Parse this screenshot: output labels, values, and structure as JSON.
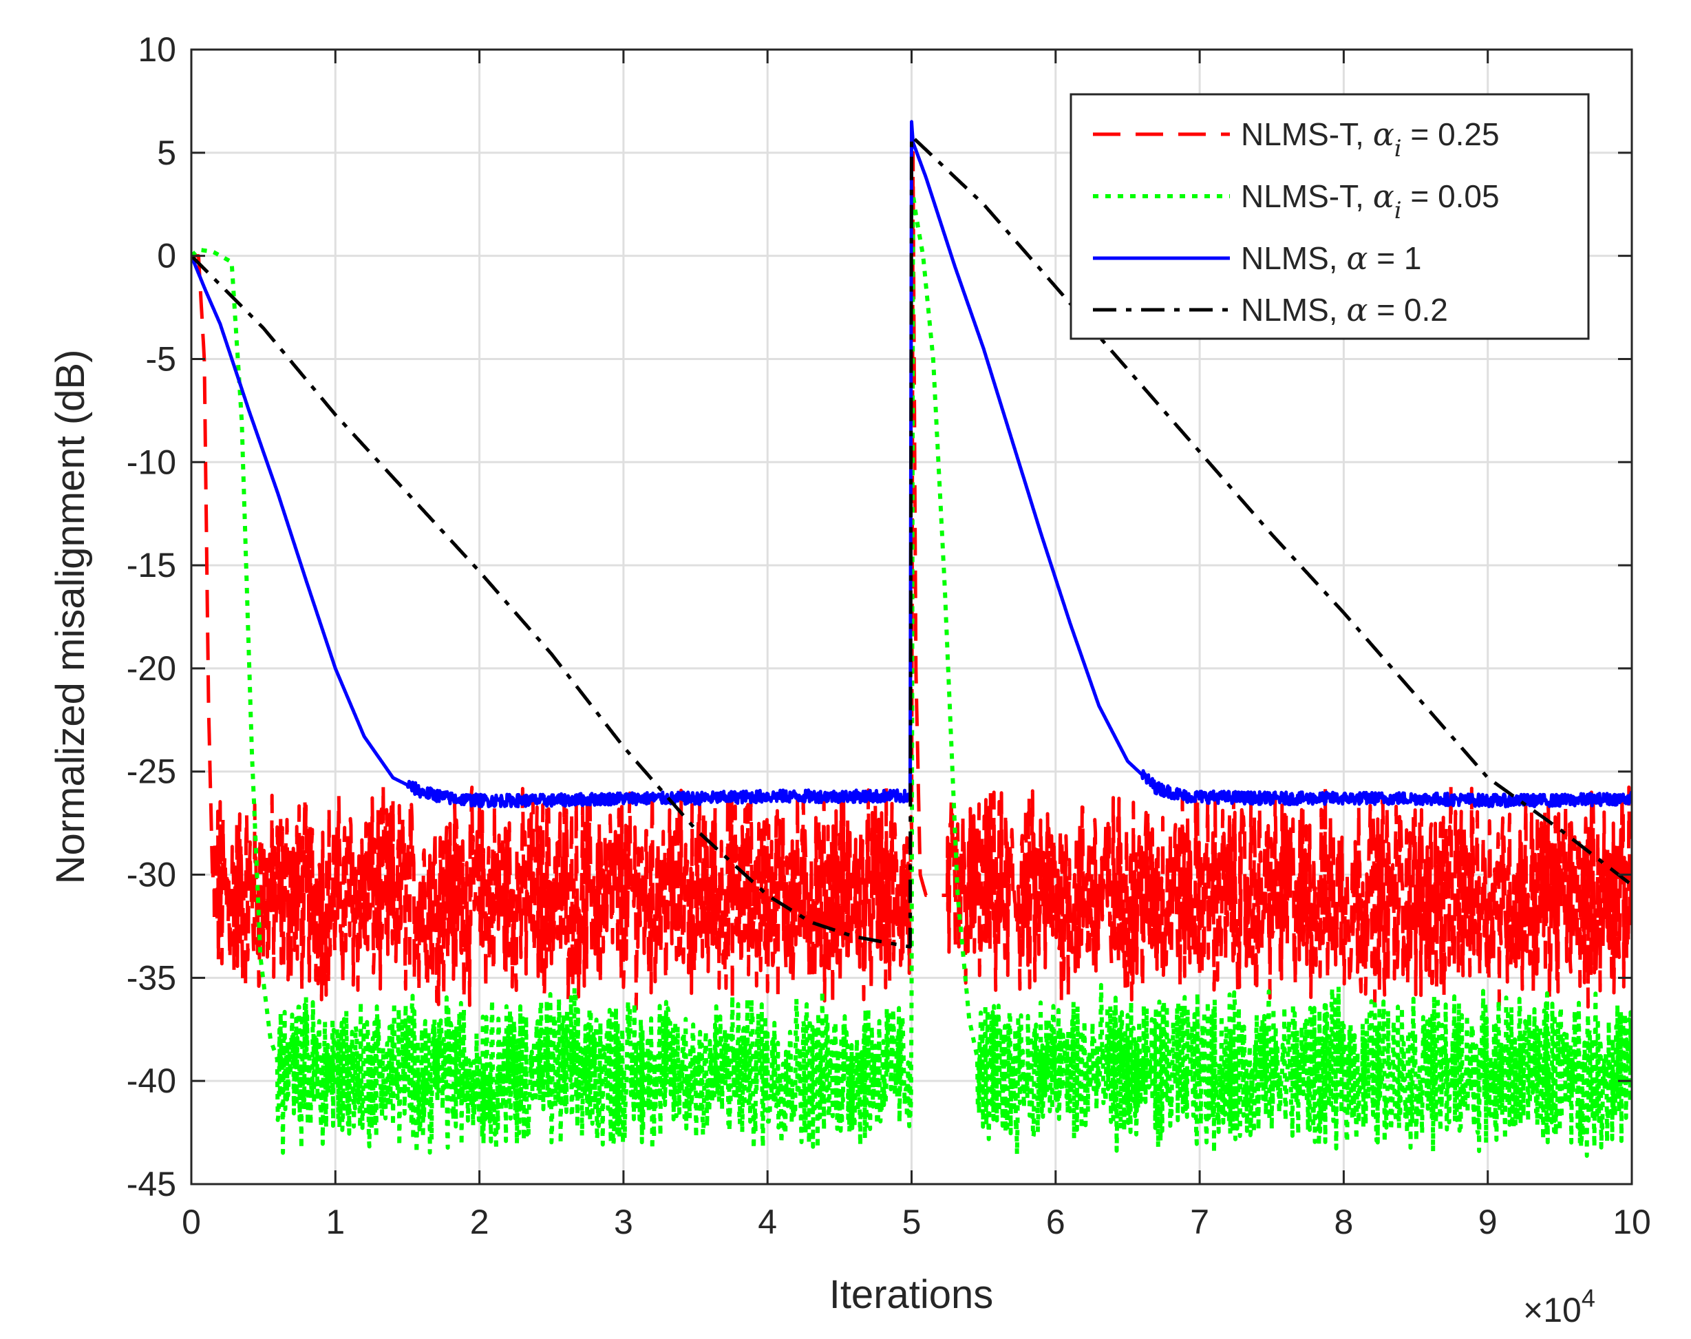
{
  "chart_data": {
    "type": "line",
    "xlabel": "Iterations",
    "ylabel": "Normalized misalignment (dB)",
    "x_multiplier": "×10^4",
    "x_multiplier_base": "×10",
    "x_multiplier_exp": "4",
    "xlim": [
      0,
      100000
    ],
    "ylim": [
      -45,
      10
    ],
    "x_ticks": [
      0,
      10000,
      20000,
      30000,
      40000,
      50000,
      60000,
      70000,
      80000,
      90000,
      100000
    ],
    "x_tick_labels": [
      "0",
      "1",
      "2",
      "3",
      "4",
      "5",
      "6",
      "7",
      "8",
      "9",
      "10"
    ],
    "y_ticks": [
      10,
      5,
      0,
      -5,
      -10,
      -15,
      -20,
      -25,
      -30,
      -35,
      -40,
      -45
    ],
    "y_tick_labels": [
      "10",
      "5",
      "0",
      "-5",
      "-10",
      "-15",
      "-20",
      "-25",
      "-30",
      "-35",
      "-40",
      "-45"
    ],
    "grid": true,
    "legend_position": "top-right",
    "series": [
      {
        "name": "NLMS-T, α_i = 0.25",
        "label_text": "NLMS-T,",
        "label_symbol": "α",
        "label_sub": "i",
        "label_value": "= 0.25",
        "color": "#ff0000",
        "dash": "dashed",
        "x": [
          0,
          500,
          900,
          1200,
          1500,
          50000,
          50100,
          50300,
          50600,
          51000,
          51500,
          52000,
          52500,
          100000
        ],
        "y": [
          0,
          0,
          -5,
          -22,
          -31,
          -31,
          5,
          -20,
          -30,
          -31,
          -31,
          -31,
          -31,
          -31
        ],
        "noise_start": [
          1500,
          52500
        ],
        "noise_end": [
          50000,
          100000
        ],
        "noise_mean": -31,
        "noise_amplitude": 4
      },
      {
        "name": "NLMS-T, α_i = 0.05",
        "label_text": "NLMS-T,",
        "label_symbol": "α",
        "label_sub": "i",
        "label_value": "= 0.05",
        "color": "#00ff00",
        "dash": "dotted",
        "x": [
          0,
          500,
          1500,
          2800,
          3500,
          4200,
          4800,
          5500,
          6000,
          50000,
          50100,
          50300,
          50800,
          51500,
          52300,
          53200,
          54000,
          54600,
          100000
        ],
        "y": [
          0,
          0.3,
          0.2,
          -0.3,
          -8,
          -24,
          -34,
          -38,
          -39,
          -39,
          3,
          2,
          0,
          -5,
          -16,
          -31,
          -37,
          -39,
          -39
        ],
        "noise_start": [
          6000,
          54600
        ],
        "noise_end": [
          50000,
          100000
        ],
        "noise_mean": -39.5,
        "noise_amplitude": 3
      },
      {
        "name": "NLMS, α = 1",
        "label_text": "NLMS,",
        "label_symbol": "α",
        "label_sub": "",
        "label_value": "= 1",
        "color": "#0000ff",
        "dash": "solid",
        "x": [
          0,
          1000,
          2000,
          4000,
          6000,
          8000,
          10000,
          12000,
          14000,
          16000,
          18000,
          20000,
          25000,
          30000,
          35000,
          40000,
          45000,
          49900,
          50000,
          50100,
          51000,
          53000,
          55000,
          57000,
          59000,
          61000,
          63000,
          65000,
          67000,
          69000,
          75000,
          80000,
          85000,
          90000,
          95000,
          100000
        ],
        "y": [
          0,
          -1.7,
          -3.3,
          -7.5,
          -11.5,
          -15.8,
          -20,
          -23.3,
          -25.3,
          -26,
          -26.3,
          -26.4,
          -26.4,
          -26.3,
          -26.3,
          -26.2,
          -26.2,
          -26.2,
          6.5,
          5.5,
          3.8,
          -0.5,
          -4.5,
          -9,
          -13.5,
          -17.8,
          -21.8,
          -24.5,
          -25.8,
          -26.2,
          -26.3,
          -26.3,
          -26.3,
          -26.4,
          -26.4,
          -26.3
        ],
        "noise_amplitude": 0.3
      },
      {
        "name": "NLMS, α = 0.2",
        "label_text": "NLMS,",
        "label_symbol": "α",
        "label_sub": "",
        "label_value": "= 0.2",
        "color": "#000000",
        "dash": "dashdot",
        "x": [
          0,
          5000,
          10000,
          15000,
          20000,
          25000,
          30000,
          35000,
          40000,
          43000,
          46000,
          49900,
          50000,
          55000,
          60000,
          65000,
          70000,
          75000,
          80000,
          85000,
          90000,
          95000,
          100000
        ],
        "y": [
          0,
          -3.5,
          -7.7,
          -11.5,
          -15.3,
          -19.3,
          -23.8,
          -27.8,
          -31,
          -32.3,
          -33,
          -33.5,
          5.8,
          2.5,
          -1.5,
          -5.5,
          -9.5,
          -13.5,
          -17.3,
          -21.3,
          -25.3,
          -27.8,
          -30.5
        ],
        "noise_amplitude": 0
      }
    ]
  }
}
